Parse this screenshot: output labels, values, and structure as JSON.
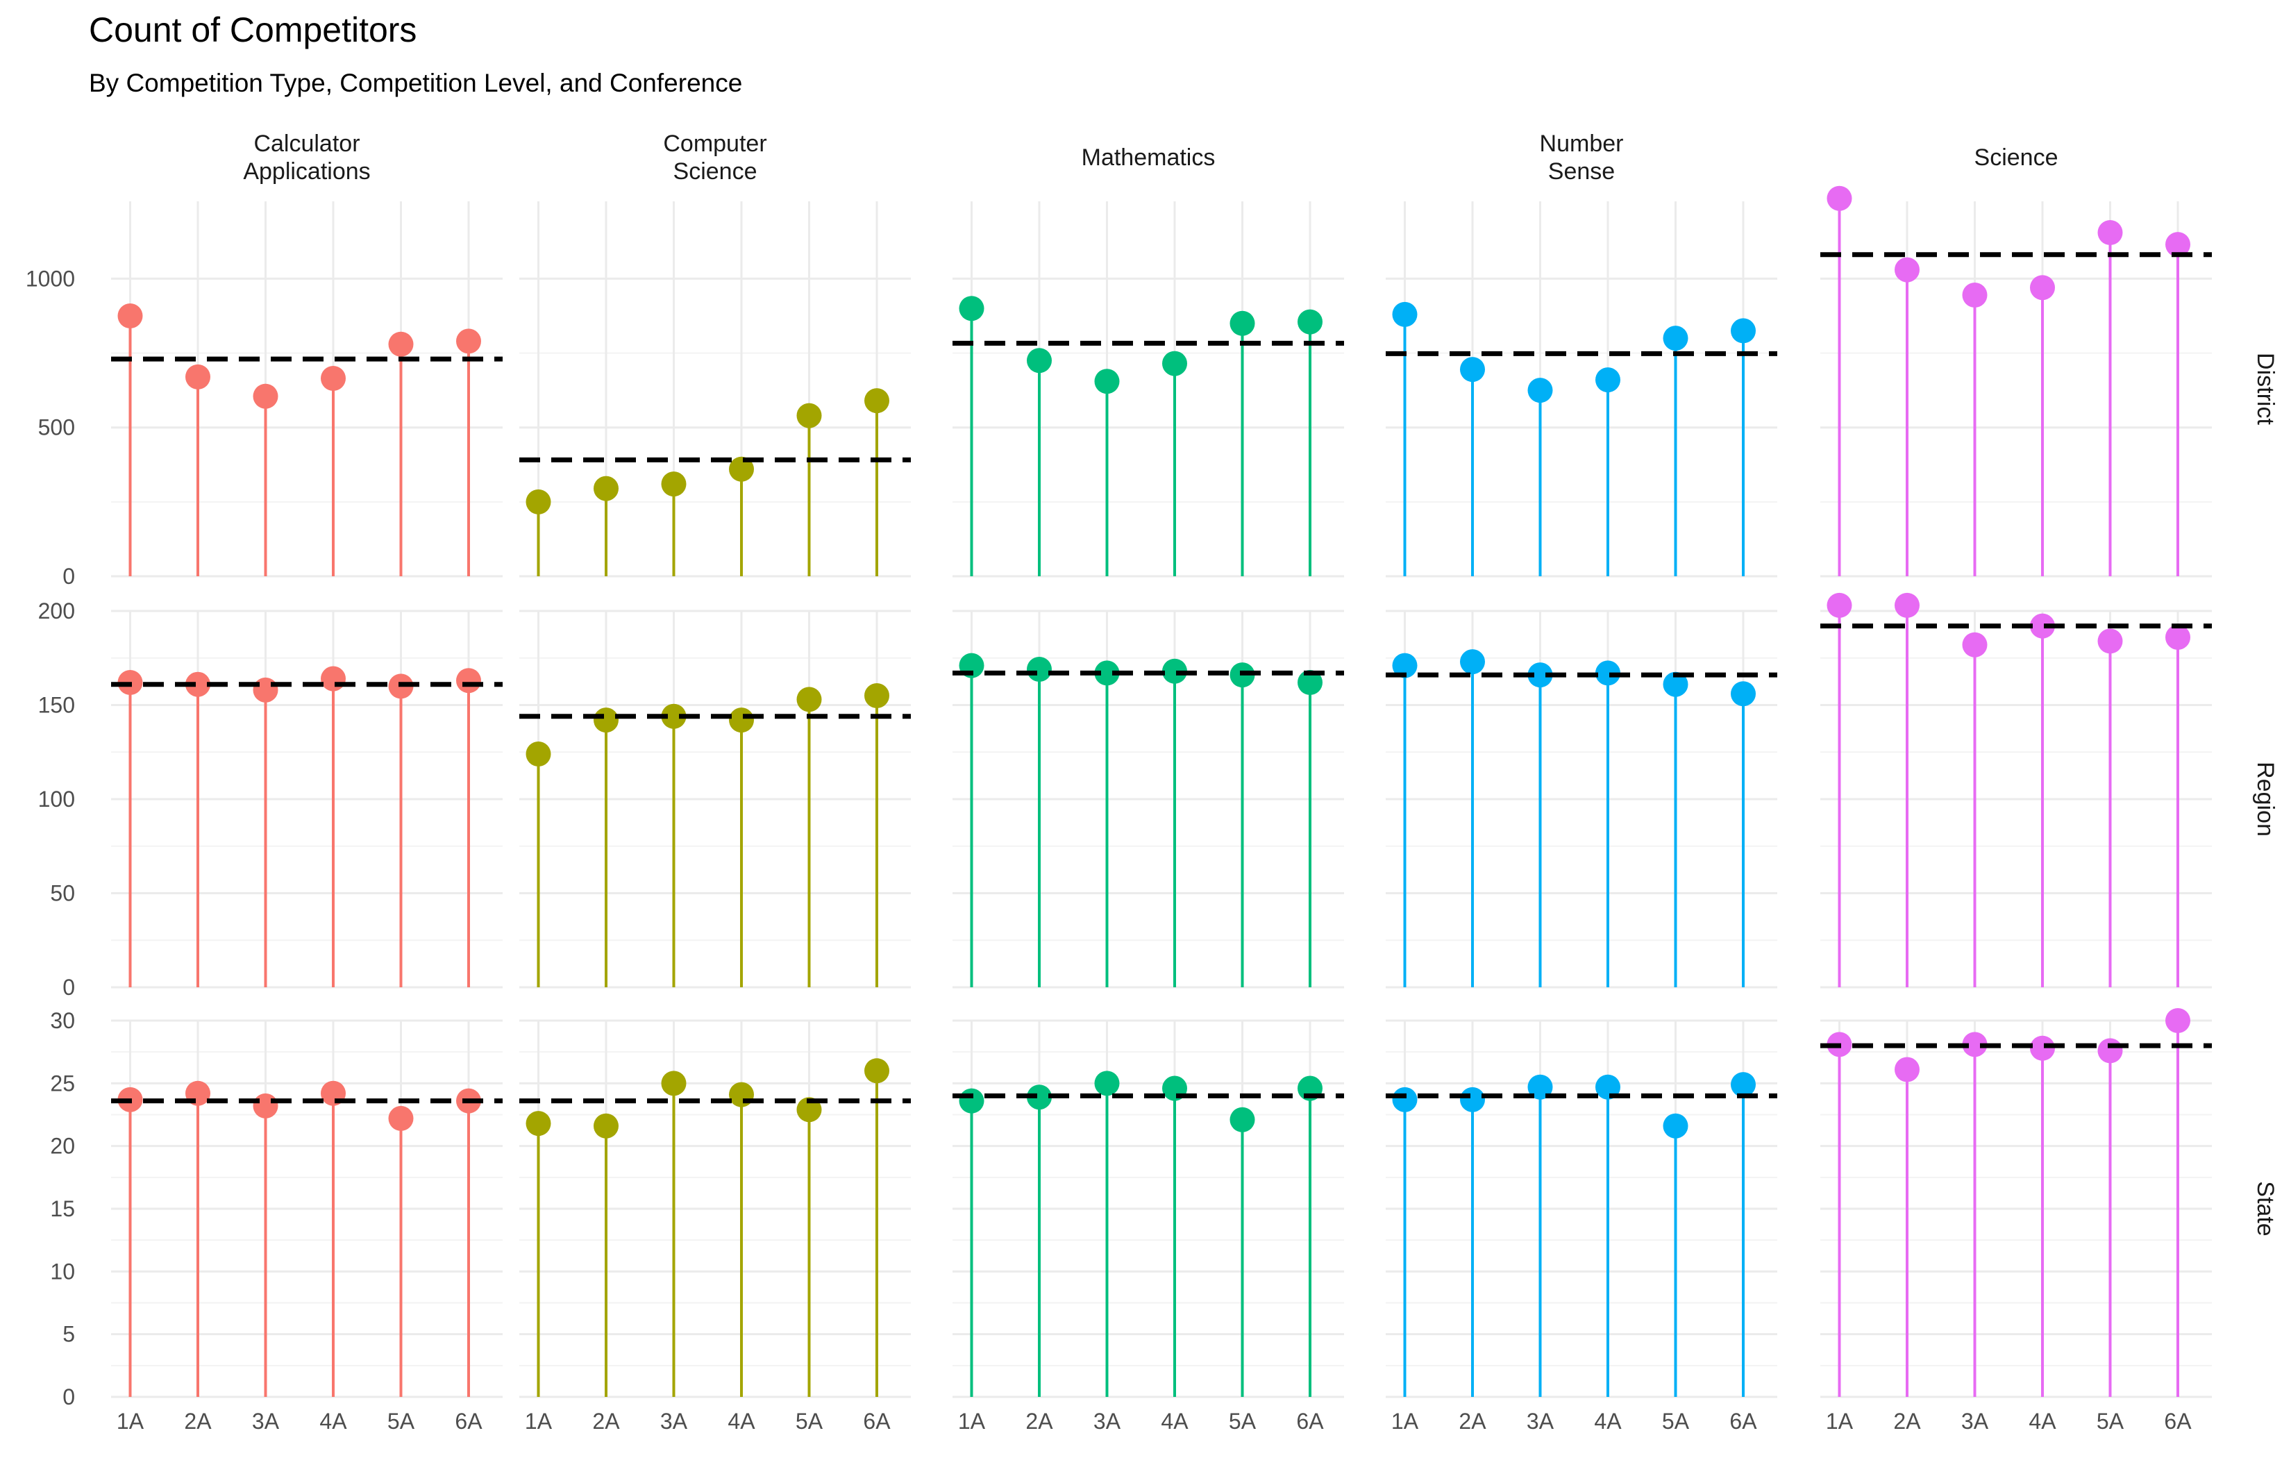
{
  "chart_data": {
    "type": "lollipop",
    "title": "Count of Competitors",
    "subtitle": "By Competition Type, Competition Level, and Conference",
    "xlabel": "",
    "ylabel": "",
    "categories": [
      "1A",
      "2A",
      "3A",
      "4A",
      "5A",
      "6A"
    ],
    "grid": true,
    "legend": "none",
    "columns": [
      {
        "name": "Calculator Applications",
        "lines": [
          "Calculator",
          "Applications"
        ],
        "color": "#F8766D"
      },
      {
        "name": "Computer Science",
        "lines": [
          "Computer",
          "Science"
        ],
        "color": "#A3A500"
      },
      {
        "name": "Mathematics",
        "lines": [
          "Mathematics"
        ],
        "color": "#00BF7D"
      },
      {
        "name": "Number Sense",
        "lines": [
          "Number",
          "Sense"
        ],
        "color": "#00B0F6"
      },
      {
        "name": "Science",
        "lines": [
          "Science"
        ],
        "color": "#E76BF3"
      }
    ],
    "rows": [
      {
        "name": "District",
        "ylim": [
          0,
          1260
        ],
        "yticks": [
          0,
          500,
          1000
        ],
        "values": [
          [
            875,
            670,
            605,
            665,
            780,
            790
          ],
          [
            250,
            295,
            310,
            360,
            540,
            590
          ],
          [
            900,
            725,
            655,
            715,
            850,
            855
          ],
          [
            880,
            695,
            625,
            660,
            800,
            825
          ],
          [
            1270,
            1030,
            945,
            970,
            1155,
            1115
          ]
        ],
        "mean": [
          730,
          391,
          783,
          748,
          1081
        ]
      },
      {
        "name": "Region",
        "ylim": [
          0,
          200
        ],
        "yticks": [
          0,
          50,
          100,
          150,
          200
        ],
        "values": [
          [
            162,
            161,
            158,
            164,
            160,
            163
          ],
          [
            124,
            142,
            144,
            142,
            153,
            155
          ],
          [
            171,
            169,
            167,
            168,
            166,
            162
          ],
          [
            171,
            173,
            166,
            167,
            161,
            156
          ],
          [
            203,
            203,
            182,
            192,
            184,
            186
          ]
        ],
        "mean": [
          161,
          144,
          167,
          166,
          192
        ]
      },
      {
        "name": "State",
        "ylim": [
          0,
          30
        ],
        "yticks": [
          0,
          5,
          10,
          15,
          20,
          25,
          30
        ],
        "values": [
          [
            23.7,
            24.2,
            23.2,
            24.2,
            22.2,
            23.6
          ],
          [
            21.8,
            21.6,
            25.0,
            24.1,
            22.9,
            26.0
          ],
          [
            23.6,
            23.9,
            25.0,
            24.6,
            22.1,
            24.6
          ],
          [
            23.7,
            23.7,
            24.7,
            24.7,
            21.6,
            24.9
          ],
          [
            28.1,
            26.1,
            28.1,
            27.8,
            27.6,
            30.0
          ]
        ],
        "mean": [
          23.6,
          23.6,
          24.0,
          24.0,
          28.0
        ]
      }
    ]
  }
}
